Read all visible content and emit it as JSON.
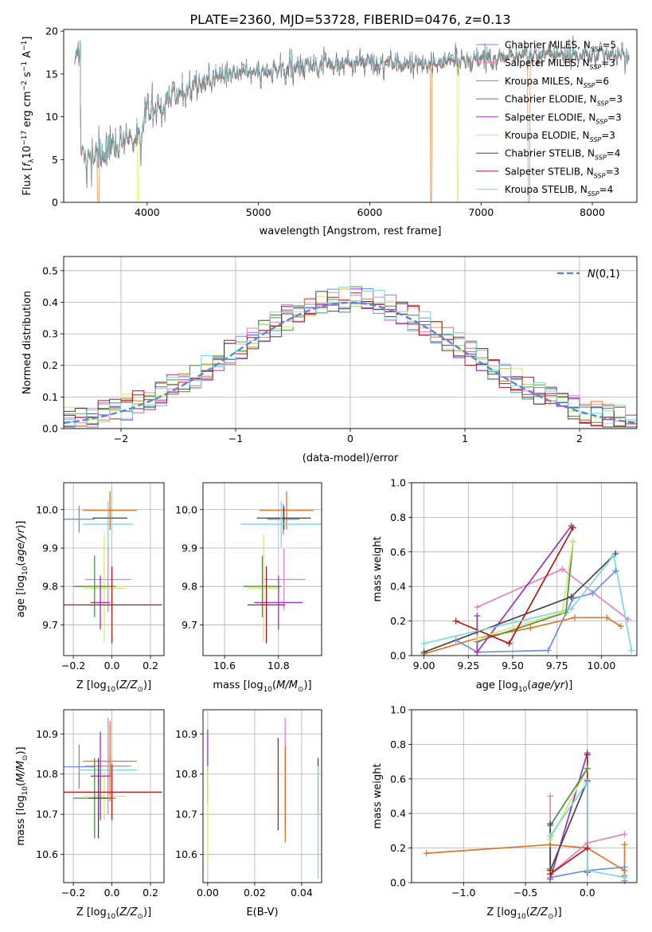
{
  "figure": {
    "title": "PLATE=2360, MJD=53728, FIBERID=0476, z=0.13"
  },
  "palette": {
    "Chabrier MILES": "#6f8fd6",
    "Salpeter MILES": "#e482be",
    "Kroupa MILES": "#d9782a",
    "Chabrier ELODIE": "#4e8a4e",
    "Salpeter ELODIE": "#9b30c0",
    "Kroupa ELODIE": "#d6e86a",
    "Chabrier STELIB": "#444444",
    "Salpeter STELIB": "#b01818",
    "Kroupa STELIB": "#7ad8e0",
    "normal": "#5b87cf",
    "grid": "#b0b0b0"
  },
  "chart_data": [
    {
      "id": "spectrum",
      "type": "line",
      "xlabel": "wavelength [Angstrom, rest frame]",
      "ylabel": "Flux [f_λ10^-17 erg cm^-2 s^-1 A^-1]",
      "xlim": [
        3250,
        8400
      ],
      "ylim": [
        0,
        20.2
      ],
      "xticks": [
        4000,
        5000,
        6000,
        7000,
        8000
      ],
      "yticks": [
        0,
        5,
        10,
        15,
        20
      ],
      "grid": false,
      "legend": "upper right",
      "legend_entries": [
        {
          "model": "Chabrier MILES",
          "nssp": 5
        },
        {
          "model": "Salpeter MILES",
          "nssp": 3
        },
        {
          "model": "Kroupa MILES",
          "nssp": 6
        },
        {
          "model": "Chabrier ELODIE",
          "nssp": 3
        },
        {
          "model": "Salpeter ELODIE",
          "nssp": 3
        },
        {
          "model": "Kroupa ELODIE",
          "nssp": 3
        },
        {
          "model": "Chabrier STELIB",
          "nssp": 4
        },
        {
          "model": "Salpeter STELIB",
          "nssp": 3
        },
        {
          "model": "Kroupa STELIB",
          "nssp": 4
        }
      ],
      "continuum": [
        [
          3400,
          5.8
        ],
        [
          3600,
          5.5
        ],
        [
          3800,
          6.8
        ],
        [
          3950,
          8
        ],
        [
          4000,
          10.5
        ],
        [
          4200,
          12
        ],
        [
          4400,
          13.5
        ],
        [
          4600,
          14.5
        ],
        [
          5000,
          15.3
        ],
        [
          5500,
          16
        ],
        [
          6000,
          16.3
        ],
        [
          6500,
          16.2
        ],
        [
          7000,
          16.8
        ],
        [
          7500,
          17.3
        ],
        [
          8000,
          17.3
        ],
        [
          8300,
          17.2
        ]
      ],
      "drops": [
        {
          "x": 3560,
          "series": "Kroupa MILES"
        },
        {
          "x": 3920,
          "series": "Kroupa ELODIE"
        },
        {
          "x": 6790,
          "series": "Kroupa ELODIE"
        },
        {
          "x": 6550,
          "series": "Kroupa MILES"
        },
        {
          "x": 7430,
          "series": "Kroupa MILES"
        }
      ]
    },
    {
      "id": "residuals",
      "type": "line",
      "xlabel": "(data-model)/error",
      "ylabel": "Normed distribution",
      "xlim": [
        -2.5,
        2.5
      ],
      "ylim": [
        0,
        0.545
      ],
      "xticks": [
        -2,
        -1,
        0,
        1,
        2
      ],
      "yticks": [
        0.0,
        0.1,
        0.2,
        0.3,
        0.4,
        0.5
      ],
      "grid": true,
      "legend": "upper right",
      "reference_label": "N(0,1)"
    },
    {
      "id": "age-vs-Z",
      "type": "scatter",
      "xlabel": "Z [log10(Z/Z⊙)]",
      "ylabel": "age [log10(age/yr)]",
      "xlim": [
        -0.25,
        0.27
      ],
      "ylim": [
        9.62,
        10.07
      ],
      "xticks": [
        -0.2,
        0.0,
        0.2
      ],
      "yticks": [
        9.7,
        9.8,
        9.9,
        10.0
      ],
      "grid": true,
      "points": [
        {
          "series": "Chabrier MILES",
          "x": -0.17,
          "y": 9.975,
          "xerr": 0.08,
          "yerr": 0.035
        },
        {
          "series": "Kroupa STELIB",
          "x": -0.02,
          "y": 9.962,
          "xerr": 0.13,
          "yerr": 0.06
        },
        {
          "series": "Chabrier STELIB",
          "x": -0.01,
          "y": 9.978,
          "xerr": 0.09,
          "yerr": 0.03
        },
        {
          "series": "Kroupa MILES",
          "x": -0.01,
          "y": 9.998,
          "xerr": 0.14,
          "yerr": 0.05
        },
        {
          "series": "Salpeter MILES",
          "x": -0.02,
          "y": 9.818,
          "xerr": 0.12,
          "yerr": 0.085
        },
        {
          "series": "Kroupa ELODIE",
          "x": -0.04,
          "y": 9.795,
          "xerr": 0.11,
          "yerr": 0.14
        },
        {
          "series": "Chabrier ELODIE",
          "x": -0.09,
          "y": 9.8,
          "xerr": 0.11,
          "yerr": 0.08
        },
        {
          "series": "Salpeter ELODIE",
          "x": -0.06,
          "y": 9.758,
          "xerr": 0.05,
          "yerr": 0.07
        },
        {
          "series": "Salpeter STELIB",
          "x": 0.0,
          "y": 9.752,
          "xerr": 0.26,
          "yerr": 0.1
        }
      ]
    },
    {
      "id": "age-vs-mass",
      "type": "scatter",
      "xlabel": "mass [log10(M/M⊙)]",
      "ylabel": "",
      "xlim": [
        10.52,
        10.96
      ],
      "ylim": [
        9.62,
        10.07
      ],
      "xticks": [
        10.6,
        10.8
      ],
      "yticks": [
        9.7,
        9.8,
        9.9,
        10.0
      ],
      "grid": true,
      "points": [
        {
          "series": "Kroupa MILES",
          "x": 10.83,
          "y": 9.998,
          "xerr": 0.1,
          "yerr": 0.05
        },
        {
          "series": "Chabrier MILES",
          "x": 10.818,
          "y": 9.975,
          "xerr": 0.06,
          "yerr": 0.04
        },
        {
          "series": "Chabrier STELIB",
          "x": 10.82,
          "y": 9.978,
          "xerr": 0.1,
          "yerr": 0.03
        },
        {
          "series": "Kroupa STELIB",
          "x": 10.81,
          "y": 9.962,
          "xerr": 0.15,
          "yerr": 0.06
        },
        {
          "series": "Salpeter MILES",
          "x": 10.82,
          "y": 9.818,
          "xerr": 0.08,
          "yerr": 0.08
        },
        {
          "series": "Kroupa ELODIE",
          "x": 10.745,
          "y": 9.795,
          "xerr": 0.06,
          "yerr": 0.14
        },
        {
          "series": "Chabrier ELODIE",
          "x": 10.74,
          "y": 9.8,
          "xerr": 0.07,
          "yerr": 0.08
        },
        {
          "series": "Salpeter ELODIE",
          "x": 10.8,
          "y": 9.758,
          "xerr": 0.09,
          "yerr": 0.07
        },
        {
          "series": "Salpeter STELIB",
          "x": 10.755,
          "y": 9.752,
          "xerr": 0.07,
          "yerr": 0.1
        }
      ]
    },
    {
      "id": "weight-vs-age",
      "type": "line",
      "xlabel": "age [log10(age/yr)]",
      "ylabel": "mass weight",
      "xlim": [
        8.93,
        10.2
      ],
      "ylim": [
        0,
        1
      ],
      "xticks": [
        9.0,
        9.25,
        9.5,
        9.75,
        10.0
      ],
      "yticks": [
        0.0,
        0.2,
        0.4,
        0.6,
        0.8,
        1.0
      ],
      "grid": true,
      "series": [
        {
          "name": "Chabrier MILES",
          "points": [
            [
              9.18,
              0.09
            ],
            [
              9.3,
              0.02
            ],
            [
              9.7,
              0.03
            ],
            [
              9.84,
              0.33
            ],
            [
              9.95,
              0.36
            ],
            [
              10.08,
              0.49
            ]
          ]
        },
        {
          "name": "Salpeter MILES",
          "points": [
            [
              9.3,
              0.28
            ],
            [
              9.78,
              0.5
            ],
            [
              10.15,
              0.21
            ]
          ]
        },
        {
          "name": "Kroupa MILES",
          "points": [
            [
              9.0,
              0.01
            ],
            [
              9.3,
              0.1
            ],
            [
              9.6,
              0.16
            ],
            [
              9.85,
              0.22
            ],
            [
              10.03,
              0.22
            ],
            [
              10.11,
              0.17
            ]
          ]
        },
        {
          "name": "Chabrier ELODIE",
          "points": [
            [
              9.3,
              0.08
            ],
            [
              9.8,
              0.25
            ],
            [
              9.84,
              0.66
            ]
          ]
        },
        {
          "name": "Salpeter ELODIE",
          "points": [
            [
              9.3,
              0.23
            ],
            [
              9.3,
              0.02
            ],
            [
              9.83,
              0.75
            ]
          ]
        },
        {
          "name": "Kroupa ELODIE",
          "points": [
            [
              9.3,
              0.1
            ],
            [
              9.78,
              0.25
            ],
            [
              9.84,
              0.66
            ]
          ]
        },
        {
          "name": "Chabrier STELIB",
          "points": [
            [
              9.0,
              0.02
            ],
            [
              9.83,
              0.34
            ],
            [
              10.08,
              0.59
            ]
          ]
        },
        {
          "name": "Salpeter STELIB",
          "points": [
            [
              9.18,
              0.2
            ],
            [
              9.48,
              0.07
            ],
            [
              9.84,
              0.74
            ]
          ]
        },
        {
          "name": "Kroupa STELIB",
          "points": [
            [
              9.0,
              0.07
            ],
            [
              9.83,
              0.27
            ],
            [
              10.07,
              0.58
            ],
            [
              10.17,
              0.03
            ]
          ]
        }
      ]
    },
    {
      "id": "mass-vs-Z",
      "type": "scatter",
      "xlabel": "Z [log10(Z/Z⊙)]",
      "ylabel": "mass [log10(M/M⊙)]",
      "xlim": [
        -0.25,
        0.27
      ],
      "ylim": [
        10.53,
        10.96
      ],
      "xticks": [
        -0.2,
        0.0,
        0.2
      ],
      "yticks": [
        10.6,
        10.7,
        10.8,
        10.9
      ],
      "grid": true,
      "points": [
        {
          "series": "Chabrier MILES",
          "x": -0.17,
          "y": 10.818,
          "xerr": 0.08,
          "yerr": 0.055
        },
        {
          "series": "Kroupa STELIB",
          "x": -0.02,
          "y": 10.81,
          "xerr": 0.15,
          "yerr": 0.07
        },
        {
          "series": "Chabrier STELIB",
          "x": -0.01,
          "y": 10.82,
          "xerr": 0.09,
          "yerr": 0.03
        },
        {
          "series": "Kroupa MILES",
          "x": -0.01,
          "y": 10.832,
          "xerr": 0.14,
          "yerr": 0.1
        },
        {
          "series": "Salpeter MILES",
          "x": -0.02,
          "y": 10.82,
          "xerr": 0.12,
          "yerr": 0.12
        },
        {
          "series": "Kroupa ELODIE",
          "x": -0.04,
          "y": 10.745,
          "xerr": 0.11,
          "yerr": 0.06
        },
        {
          "series": "Chabrier ELODIE",
          "x": -0.09,
          "y": 10.74,
          "xerr": 0.11,
          "yerr": 0.1
        },
        {
          "series": "Salpeter ELODIE",
          "x": -0.06,
          "y": 10.795,
          "xerr": 0.05,
          "yerr": 0.11
        },
        {
          "series": "Salpeter STELIB",
          "x": 0.0,
          "y": 10.755,
          "xerr": 0.26,
          "yerr": 0.07
        },
        {
          "series": "Chabrier STELIB",
          "x": -0.07,
          "y": 10.74,
          "xerr": 0.05,
          "yerr": 0.1
        }
      ]
    },
    {
      "id": "mass-vs-ebv",
      "type": "scatter",
      "xlabel": "E(B-V)",
      "ylabel": "",
      "xlim": [
        -0.002,
        0.0485
      ],
      "ylim": [
        10.53,
        10.96
      ],
      "xticks": [
        0.0,
        0.02,
        0.04
      ],
      "yticks": [
        10.6,
        10.7,
        10.8,
        10.9
      ],
      "grid": true,
      "points": [
        {
          "series": "Salpeter ELODIE",
          "x": 0.0,
          "y": 10.82,
          "xerr": 0,
          "yerr": 0.09
        },
        {
          "series": "Kroupa ELODIE",
          "x": 0.0,
          "y": 10.7,
          "xerr": 0,
          "yerr": 0.12
        },
        {
          "series": "Salpeter STELIB",
          "x": 0.03,
          "y": 10.775,
          "xerr": 0,
          "yerr": 0.115
        },
        {
          "series": "Salpeter MILES",
          "x": 0.033,
          "y": 10.8,
          "xerr": 0,
          "yerr": 0.14
        },
        {
          "series": "Kroupa MILES",
          "x": 0.033,
          "y": 10.75,
          "xerr": 0,
          "yerr": 0.12
        },
        {
          "series": "Chabrier STELIB",
          "x": 0.047,
          "y": 10.77,
          "xerr": 0,
          "yerr": 0.07
        },
        {
          "series": "Kroupa STELIB",
          "x": 0.047,
          "y": 10.68,
          "xerr": 0,
          "yerr": 0.14
        }
      ]
    },
    {
      "id": "weight-vs-Z",
      "type": "line",
      "xlabel": "Z [log10(Z/Z⊙)]",
      "ylabel": "mass weight",
      "xlim": [
        -1.42,
        0.4
      ],
      "ylim": [
        0,
        1
      ],
      "xticks": [
        -1.0,
        -0.5,
        0.0
      ],
      "yticks": [
        0.0,
        0.2,
        0.4,
        0.6,
        0.8,
        1.0
      ],
      "grid": true,
      "series": [
        {
          "name": "Kroupa MILES",
          "points": [
            [
              -1.3,
              0.17
            ],
            [
              -0.3,
              0.22
            ],
            [
              0.0,
              0.2
            ],
            [
              0.3,
              0.07
            ],
            [
              0.3,
              0.22
            ],
            [
              0.3,
              0.04
            ]
          ]
        },
        {
          "name": "Salpeter MILES",
          "points": [
            [
              -0.3,
              0.5
            ],
            [
              -0.3,
              0.05
            ],
            [
              0.0,
              0.23
            ],
            [
              0.3,
              0.28
            ]
          ]
        },
        {
          "name": "Chabrier MILES",
          "points": [
            [
              -0.3,
              0.03
            ],
            [
              0.0,
              0.07
            ],
            [
              0.3,
              0.09
            ],
            [
              0.3,
              0.01
            ]
          ]
        },
        {
          "name": "Salpeter ELODIE",
          "points": [
            [
              -0.3,
              0.02
            ],
            [
              0.0,
              0.75
            ]
          ]
        },
        {
          "name": "Kroupa ELODIE",
          "points": [
            [
              -0.3,
              0.25
            ],
            [
              0.0,
              0.66
            ]
          ]
        },
        {
          "name": "Chabrier ELODIE",
          "points": [
            [
              -0.3,
              0.08
            ],
            [
              -0.3,
              0.33
            ],
            [
              0.0,
              0.66
            ]
          ]
        },
        {
          "name": "Chabrier STELIB",
          "points": [
            [
              -0.3,
              0.34
            ],
            [
              -0.3,
              0.07
            ],
            [
              0.0,
              0.59
            ],
            [
              0.0,
              0.06
            ]
          ]
        },
        {
          "name": "Salpeter STELIB",
          "points": [
            [
              -0.3,
              0.07
            ],
            [
              -0.3,
              0.05
            ],
            [
              0.0,
              0.2
            ],
            [
              0.0,
              0.74
            ]
          ]
        },
        {
          "name": "Kroupa STELIB",
          "points": [
            [
              -0.3,
              0.27
            ],
            [
              0.0,
              0.58
            ],
            [
              0.0,
              0.07
            ],
            [
              0.3,
              0.03
            ]
          ]
        }
      ]
    }
  ]
}
